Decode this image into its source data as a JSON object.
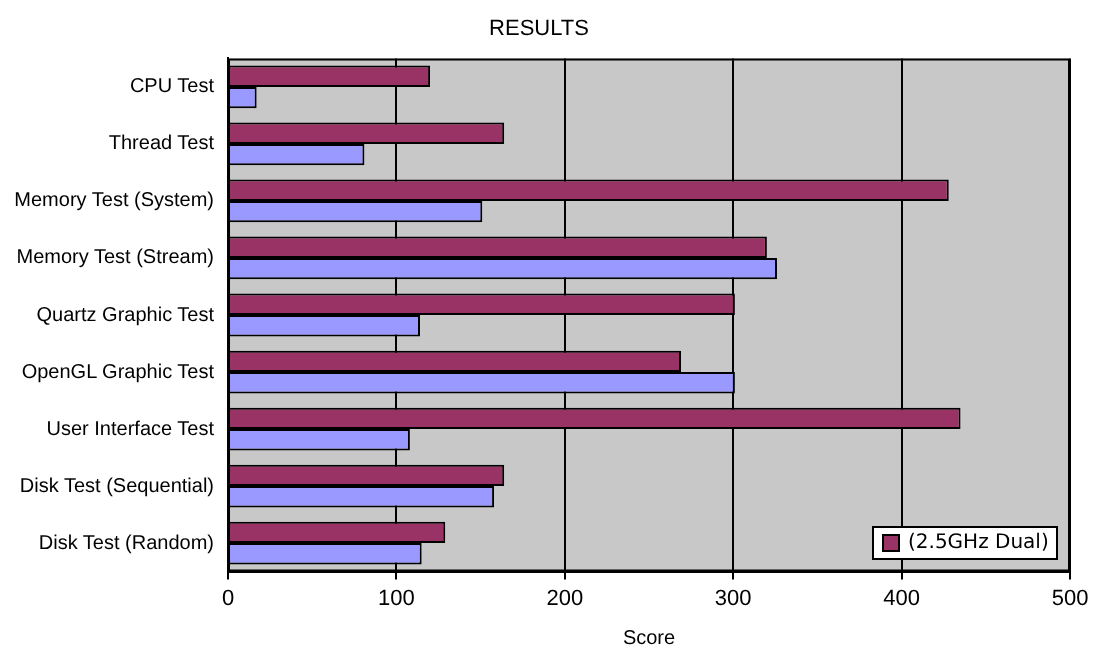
{
  "chart_data": {
    "type": "bar",
    "orientation": "horizontal",
    "title": "RESULTS",
    "xlabel": "Score",
    "categories": [
      "CPU Test",
      "Thread Test",
      "Memory Test (System)",
      "Memory Test (Stream)",
      "Quartz Graphic Test",
      "OpenGL Graphic Test",
      "User Interface Test",
      "Disk Test (Sequential)",
      "Disk Test (Random)"
    ],
    "series": [
      {
        "name": "(2.5GHz Dual)",
        "color": "#993366",
        "values": [
          120,
          164,
          428,
          320,
          301,
          269,
          435,
          164,
          129
        ]
      },
      {
        "color": "#9999ff",
        "values": [
          17,
          81,
          151,
          326,
          114,
          301,
          108,
          158,
          115
        ]
      }
    ],
    "xlim": [
      0,
      500
    ],
    "xticks": [
      0,
      100,
      200,
      300,
      400,
      500
    ],
    "grid": "x",
    "legend": "bottom right"
  }
}
